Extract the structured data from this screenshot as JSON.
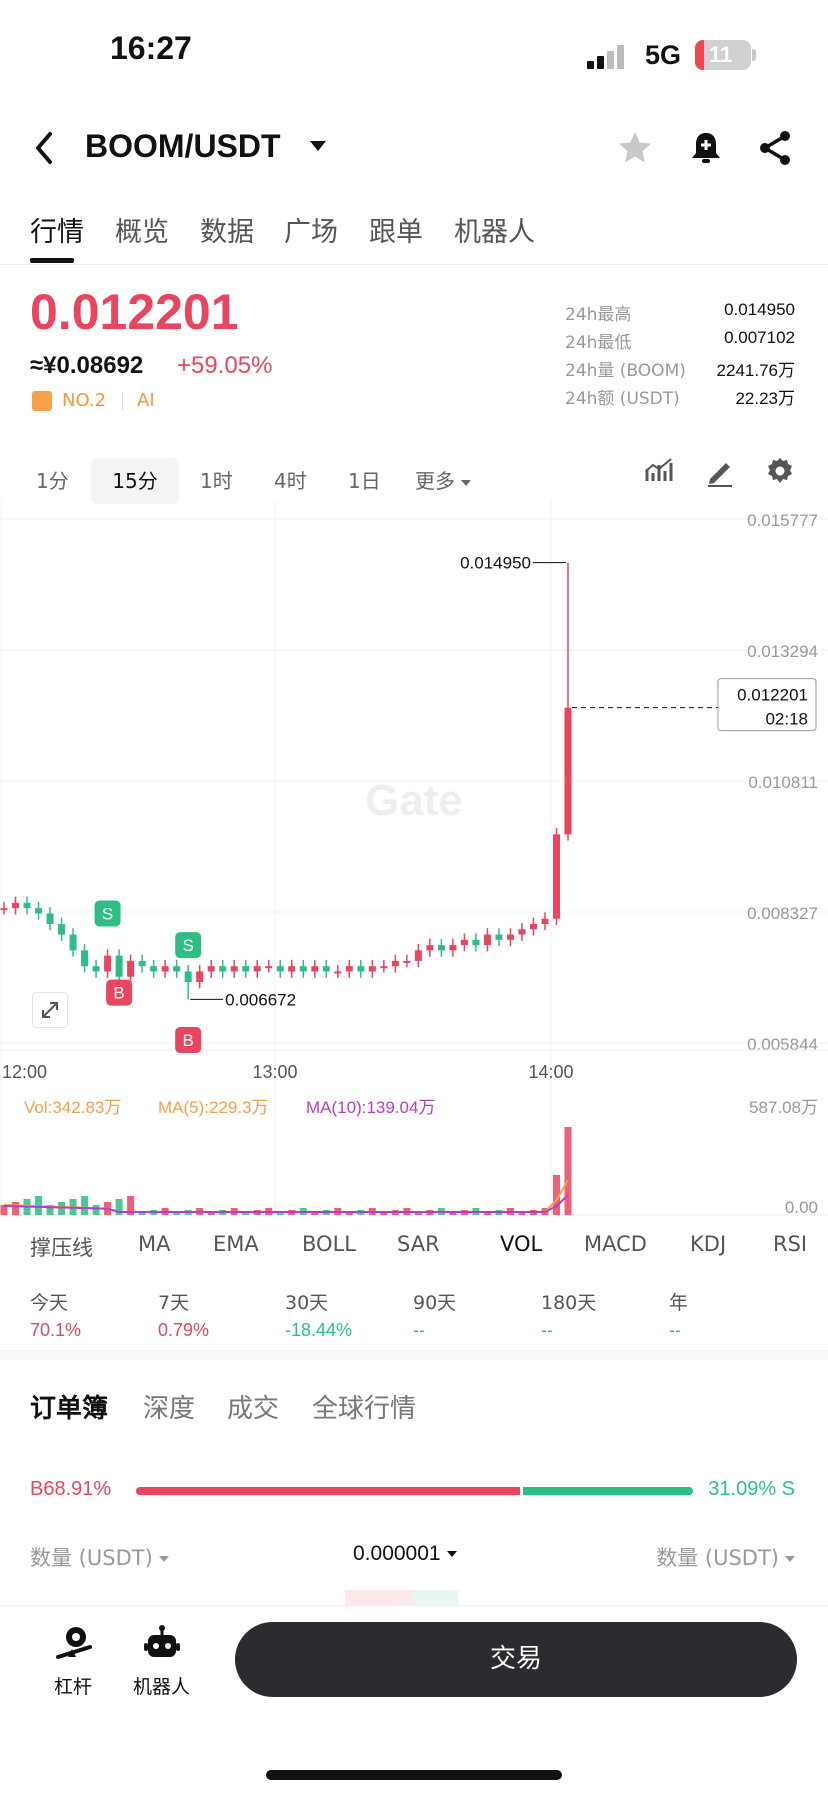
{
  "status_bar": {
    "time": "16:27",
    "network": "5G",
    "battery": "11"
  },
  "header": {
    "pair": "BOOM/USDT",
    "icons": [
      "back-icon",
      "star-icon",
      "bell-add-icon",
      "share-icon"
    ]
  },
  "tabs": [
    "行情",
    "概览",
    "数据",
    "广场",
    "跟单",
    "机器人"
  ],
  "ticker": {
    "last_price": "0.012201",
    "cny_price": "≈¥0.08692",
    "change": "+59.05%",
    "rank": "NO.2",
    "ai": "AI",
    "stats": [
      {
        "label": "24h最高",
        "value": "0.014950"
      },
      {
        "label": "24h最低",
        "value": "0.007102"
      },
      {
        "label": "24h量 (BOOM)",
        "value": "2241.76万"
      },
      {
        "label": "24h额 (USDT)",
        "value": "22.23万"
      }
    ]
  },
  "intervals": {
    "items": [
      "1分",
      "15分",
      "1时",
      "4时",
      "1日",
      "更多"
    ],
    "active": "15分"
  },
  "chart": {
    "watermark": "Gate",
    "y_axis_labels": [
      "0.015777",
      "0.013294",
      "0.010811",
      "0.008327",
      "0.005844"
    ],
    "x_axis_labels": [
      "12:00",
      "13:00",
      "14:00"
    ],
    "high_marker": "0.014950",
    "low_marker": "0.006672",
    "current_price": "0.012201",
    "countdown": "02:18",
    "trade_markers": [
      "S",
      "S",
      "B",
      "B"
    ],
    "volume": {
      "vol_label": "Vol:342.83万",
      "ma5_label": "MA(5):229.3万",
      "ma10_label": "MA(10):139.04万",
      "max_label": "587.08万",
      "min_label": "0.00"
    }
  },
  "chart_data": {
    "type": "candlestick",
    "interval": "15分",
    "x_labels": [
      "12:00",
      "13:00",
      "14:00"
    ],
    "ylim": [
      0.005844,
      0.015777
    ],
    "y_ticks": [
      0.015777,
      0.013294,
      0.010811,
      0.008327,
      0.005844
    ],
    "close_series": [
      0.0084,
      0.0085,
      0.0084,
      0.0083,
      0.0081,
      0.0079,
      0.0076,
      0.0073,
      0.0072,
      0.0075,
      0.0071,
      0.0074,
      0.0073,
      0.0072,
      0.0073,
      0.0072,
      0.007,
      0.0072,
      0.0073,
      0.0072,
      0.0073,
      0.0072,
      0.0073,
      0.0073,
      0.0072,
      0.0073,
      0.0072,
      0.0073,
      0.0072,
      0.0072,
      0.0073,
      0.0072,
      0.0073,
      0.0073,
      0.0074,
      0.0074,
      0.0076,
      0.0077,
      0.0076,
      0.0077,
      0.0078,
      0.0077,
      0.0079,
      0.0078,
      0.0079,
      0.008,
      0.0081,
      0.0082,
      0.0098,
      0.0122
    ],
    "high": 0.01495,
    "low": 0.006672,
    "last": 0.012201,
    "volume_max": "587.08万",
    "volume_min": "0.00"
  },
  "indicators": {
    "items": [
      "撑压线",
      "MA",
      "EMA",
      "BOLL",
      "SAR",
      "VOL",
      "MACD",
      "KDJ",
      "RSI"
    ],
    "active": "VOL"
  },
  "performance": [
    {
      "label": "今天",
      "value": "70.1%"
    },
    {
      "label": "7天",
      "value": "0.79%"
    },
    {
      "label": "30天",
      "value": "-18.44%"
    },
    {
      "label": "90天",
      "value": "--"
    },
    {
      "label": "180天",
      "value": "--"
    },
    {
      "label": "年",
      "value": "--"
    }
  ],
  "orderbook": {
    "tabs": [
      "订单簿",
      "深度",
      "成交",
      "全球行情"
    ],
    "buy_ratio": "B68.91%",
    "sell_ratio": "31.09% S",
    "buy_fraction": 0.6891,
    "col_left": "数量 (USDT)",
    "precision": "0.000001",
    "col_right": "数量 (USDT)"
  },
  "bottom": {
    "leverage": "杠杆",
    "robot": "机器人",
    "trade": "交易"
  },
  "colors": {
    "up": "#e8455e",
    "down": "#2fbd85",
    "ma5": "#f0a04b",
    "ma10": "#b53ec8"
  }
}
